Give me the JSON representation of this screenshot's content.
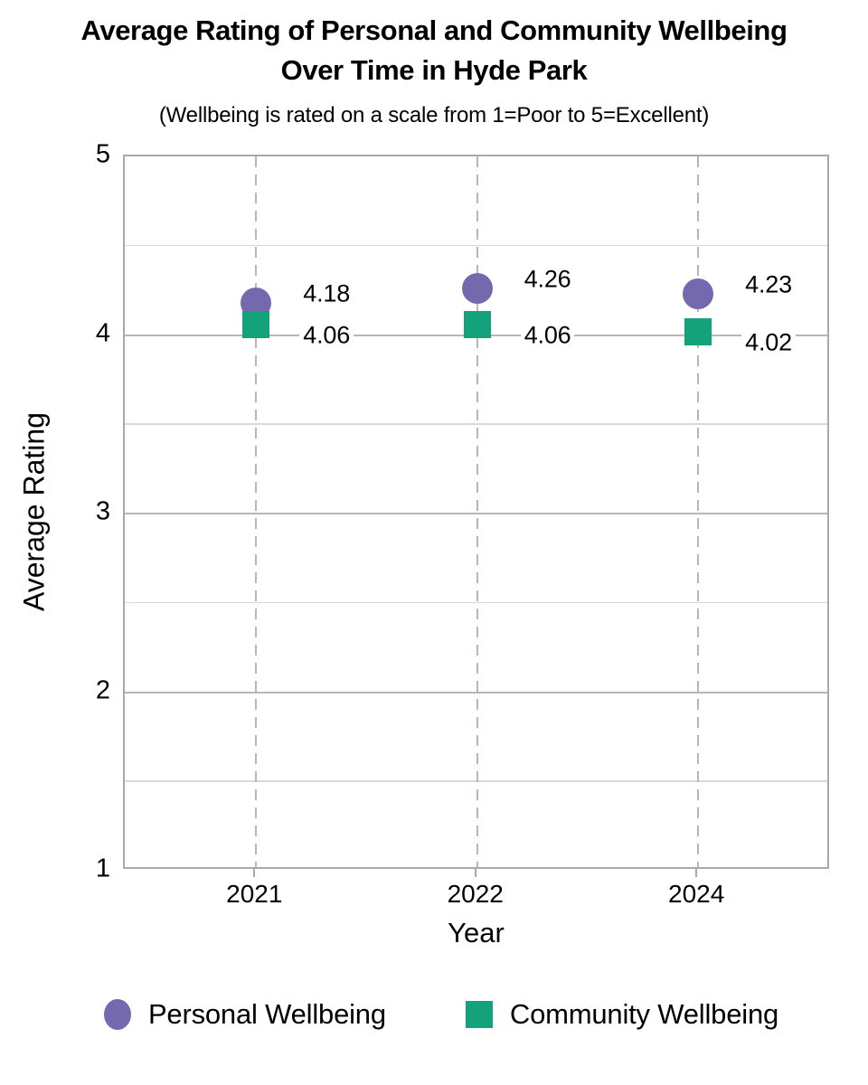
{
  "chart_data": {
    "type": "scatter",
    "title": "Average Rating of Personal and Community Wellbeing Over Time in Hyde Park",
    "title_lines": [
      "Average Rating of Personal and Community Wellbeing",
      "Over Time in Hyde Park"
    ],
    "subtitle": "(Wellbeing is rated on a scale from 1=Poor to 5=Excellent)",
    "xlabel": "Year",
    "ylabel": "Average Rating",
    "categories": [
      "2021",
      "2022",
      "2024"
    ],
    "ylim": [
      1,
      5
    ],
    "y_ticks": [
      1,
      2,
      3,
      4,
      5
    ],
    "minor_grid_step": 0.5,
    "grid": true,
    "vertical_gridline_style": "dashed",
    "legend_position": "bottom",
    "series": [
      {
        "name": "Personal Wellbeing",
        "marker": "circle",
        "color": "#7468ae",
        "values": [
          4.18,
          4.26,
          4.23
        ],
        "point_labels": [
          "4.18",
          "4.26",
          "4.23"
        ]
      },
      {
        "name": "Community Wellbeing",
        "marker": "square",
        "color": "#14a27b",
        "values": [
          4.06,
          4.06,
          4.02
        ],
        "point_labels": [
          "4.06",
          "4.06",
          "4.02"
        ]
      }
    ],
    "colors": {
      "major_grid": "#b7b7b7",
      "minor_grid": "#d9d9d9",
      "border": "#a9a9a9",
      "dashed_grid": "#b7b7b7",
      "text": "#000000"
    }
  }
}
